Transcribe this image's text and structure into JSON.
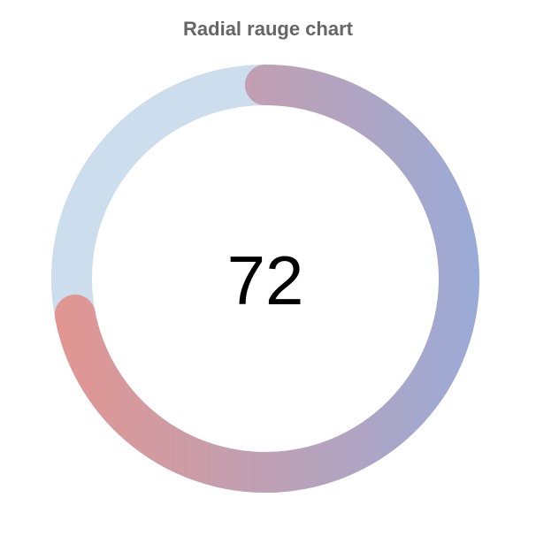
{
  "chart_data": {
    "type": "radialBar",
    "title": "Radial rauge chart",
    "value": 72,
    "value_label": "72",
    "min": 0,
    "max": 100,
    "colors": {
      "track": "#ccddee",
      "gradient_start": "#e39590",
      "gradient_end": "#9aabd8"
    }
  }
}
